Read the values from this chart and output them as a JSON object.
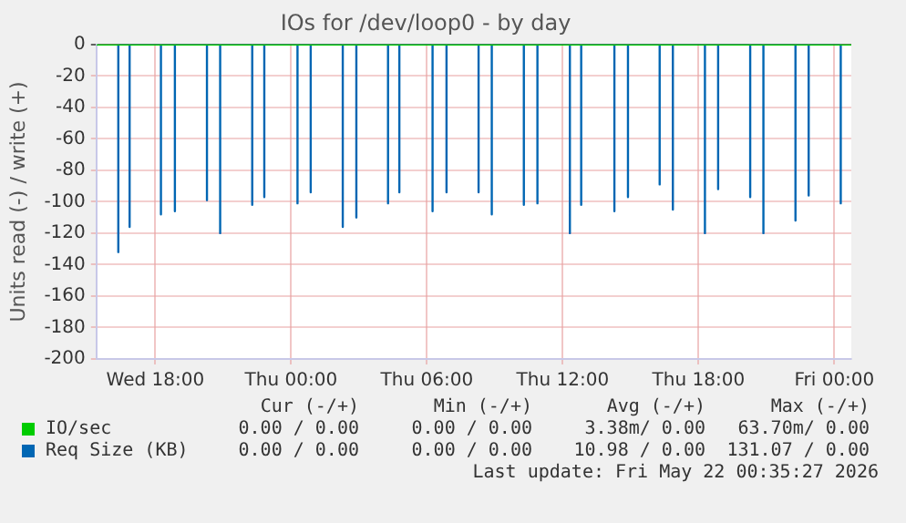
{
  "chart_data": {
    "type": "line",
    "title": "IOs for /dev/loop0 - by day",
    "ylabel": "Units read (-) / write (+)",
    "xlim": [
      "2026-05-20T15:24",
      "2026-05-22T00:45"
    ],
    "xticks": [
      {
        "value": "2026-05-20T18:00",
        "label": "Wed 18:00"
      },
      {
        "value": "2026-05-21T00:00",
        "label": "Thu 00:00"
      },
      {
        "value": "2026-05-21T06:00",
        "label": "Thu 06:00"
      },
      {
        "value": "2026-05-21T12:00",
        "label": "Thu 12:00"
      },
      {
        "value": "2026-05-21T18:00",
        "label": "Thu 18:00"
      },
      {
        "value": "2026-05-22T00:00",
        "label": "Fri 00:00"
      }
    ],
    "ylim": [
      -200,
      0
    ],
    "yticks": [
      -200,
      -180,
      -160,
      -140,
      -120,
      -100,
      -80,
      -60,
      -40,
      -20,
      0
    ],
    "grid": true,
    "legend": "bottom",
    "marker": "none",
    "line_style": "solid",
    "series": [
      {
        "name": "IO/sec",
        "color": "#00cc00",
        "x": [
          "2026-05-20T15:24",
          "2026-05-22T00:45"
        ],
        "values": [
          0,
          0
        ]
      },
      {
        "name": "Req Size (KB)",
        "color": "#0066b3",
        "x": [
          "2026-05-20T16:22",
          "2026-05-20T16:22",
          "2026-05-20T16:22",
          "2026-05-20T16:52",
          "2026-05-20T16:52",
          "2026-05-20T16:52",
          "2026-05-20T18:15",
          "2026-05-20T18:15",
          "2026-05-20T18:15",
          "2026-05-20T18:52",
          "2026-05-20T18:52",
          "2026-05-20T18:52",
          "2026-05-20T20:17",
          "2026-05-20T20:17",
          "2026-05-20T20:17",
          "2026-05-20T20:52",
          "2026-05-20T20:52",
          "2026-05-20T20:52",
          "2026-05-20T22:17",
          "2026-05-20T22:17",
          "2026-05-20T22:17",
          "2026-05-20T22:49",
          "2026-05-20T22:49",
          "2026-05-20T22:49",
          "2026-05-21T00:17",
          "2026-05-21T00:17",
          "2026-05-21T00:17",
          "2026-05-21T00:52",
          "2026-05-21T00:52",
          "2026-05-21T00:52",
          "2026-05-21T02:17",
          "2026-05-21T02:17",
          "2026-05-21T02:17",
          "2026-05-21T02:53",
          "2026-05-21T02:53",
          "2026-05-21T02:53",
          "2026-05-21T04:17",
          "2026-05-21T04:17",
          "2026-05-21T04:17",
          "2026-05-21T04:47",
          "2026-05-21T04:47",
          "2026-05-21T04:47",
          "2026-05-21T06:15",
          "2026-05-21T06:15",
          "2026-05-21T06:15",
          "2026-05-21T06:52",
          "2026-05-21T06:52",
          "2026-05-21T06:52",
          "2026-05-21T08:17",
          "2026-05-21T08:17",
          "2026-05-21T08:17",
          "2026-05-21T08:52",
          "2026-05-21T08:52",
          "2026-05-21T08:52",
          "2026-05-21T10:17",
          "2026-05-21T10:17",
          "2026-05-21T10:17",
          "2026-05-21T10:53",
          "2026-05-21T10:53",
          "2026-05-21T10:53",
          "2026-05-21T12:19",
          "2026-05-21T12:19",
          "2026-05-21T12:19",
          "2026-05-21T12:49",
          "2026-05-21T12:49",
          "2026-05-21T12:49",
          "2026-05-21T14:17",
          "2026-05-21T14:17",
          "2026-05-21T14:17",
          "2026-05-21T14:53",
          "2026-05-21T14:53",
          "2026-05-21T14:53",
          "2026-05-21T16:17",
          "2026-05-21T16:17",
          "2026-05-21T16:17",
          "2026-05-21T16:52",
          "2026-05-21T16:52",
          "2026-05-21T16:52",
          "2026-05-21T18:17",
          "2026-05-21T18:17",
          "2026-05-21T18:17",
          "2026-05-21T18:52",
          "2026-05-21T18:52",
          "2026-05-21T18:52",
          "2026-05-21T20:17",
          "2026-05-21T20:17",
          "2026-05-21T20:17",
          "2026-05-21T20:52",
          "2026-05-21T20:52",
          "2026-05-21T20:52",
          "2026-05-21T22:17",
          "2026-05-21T22:17",
          "2026-05-21T22:17",
          "2026-05-21T22:52",
          "2026-05-21T22:52",
          "2026-05-21T22:52",
          "2026-05-22T00:17",
          "2026-05-22T00:17",
          "2026-05-22T00:17"
        ],
        "values": [
          0,
          -132,
          0,
          0,
          -116,
          0,
          0,
          -108,
          0,
          0,
          -106,
          0,
          0,
          -99,
          0,
          0,
          -120,
          0,
          0,
          -102,
          0,
          0,
          -97,
          0,
          0,
          -101,
          0,
          0,
          -94,
          0,
          0,
          -116,
          0,
          0,
          -110,
          0,
          0,
          -101,
          0,
          0,
          -94,
          0,
          0,
          -106,
          0,
          0,
          -94,
          0,
          0,
          -94,
          0,
          0,
          -108,
          0,
          0,
          -102,
          0,
          0,
          -101,
          0,
          0,
          -120,
          0,
          0,
          -102,
          0,
          0,
          -106,
          0,
          0,
          -97,
          0,
          0,
          -89,
          0,
          0,
          -105,
          0,
          0,
          -120,
          0,
          0,
          -92,
          0,
          0,
          -97,
          0,
          0,
          -120,
          0,
          0,
          -112,
          0,
          0,
          -96,
          0,
          0,
          -101,
          0
        ]
      }
    ],
    "annotations": [
      "Cur (-/+)",
      "Min (-/+)",
      "Avg (-/+)",
      "Max (-/+)",
      "0.00 / 0.00",
      "0.00 / 0.00",
      "3.38m/ 0.00",
      "63.70m/ 0.00",
      "0.00 / 0.00",
      "0.00 / 0.00",
      "10.98 / 0.00",
      "131.07 / 0.00",
      "Last update: Fri May 22 00:35:27 2026"
    ]
  }
}
